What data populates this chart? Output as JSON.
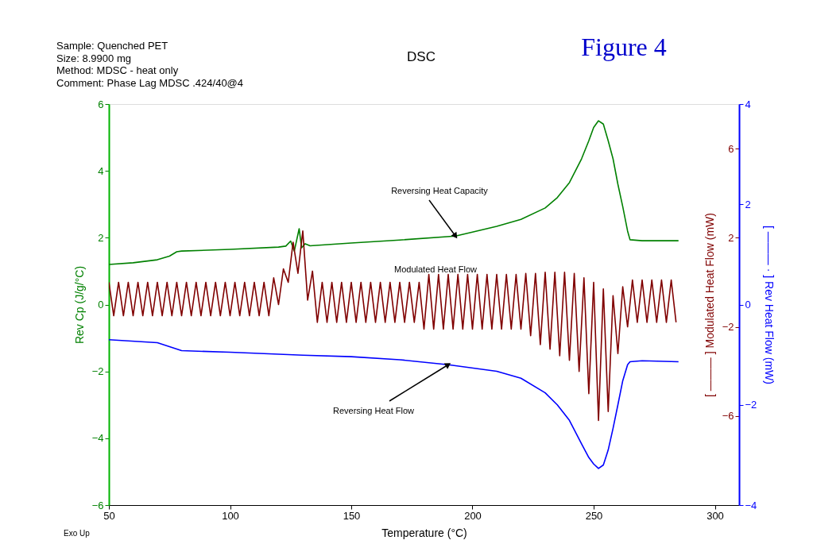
{
  "chart_data": {
    "type": "line",
    "title": "DSC",
    "subtitle": "Sample: Quenched PET\nSize:   8.9900 mg\nMethod: MDSC - heat only\nComment: Phase Lag MDSC .424/40@4",
    "xlabel": "Temperature (°C)",
    "ylabel": "Rev Cp (J/g/°C)",
    "y2label": "[ ——— ] Modulated Heat Flow (mW)",
    "y3label": "[ ——— · ] Rev Heat Flow (mW)",
    "annotations": [
      "Figure 4",
      "Exo Up"
    ],
    "xlim": [
      50,
      310
    ],
    "xticks": [
      50,
      100,
      150,
      200,
      250,
      300
    ],
    "ylim": [
      -6,
      6
    ],
    "yticks": [
      -6,
      -4,
      -2,
      0,
      2,
      4,
      6
    ],
    "y2lim": [
      -10,
      8
    ],
    "y2ticks": [
      -6,
      -2,
      2,
      6
    ],
    "y3lim": [
      -4,
      4
    ],
    "y3ticks": [
      -4,
      -2,
      0,
      2,
      4
    ],
    "grid": false,
    "series": [
      {
        "name": "Reversing Heat Capacity",
        "color": "#008000",
        "axis": "y",
        "x": [
          50,
          60,
          70,
          75,
          78,
          80,
          100,
          120,
          123,
          125,
          126.5,
          128.5,
          129.5,
          131,
          133,
          150,
          170,
          193,
          200,
          210,
          220,
          230,
          235,
          240,
          245,
          248,
          250,
          252,
          254,
          256,
          258,
          260,
          262,
          264,
          265,
          270,
          285
        ],
        "values": [
          1.2,
          1.25,
          1.34,
          1.45,
          1.58,
          1.6,
          1.65,
          1.72,
          1.75,
          1.9,
          1.6,
          2.27,
          1.7,
          1.82,
          1.76,
          1.84,
          1.93,
          2.05,
          2.17,
          2.34,
          2.55,
          2.89,
          3.2,
          3.65,
          4.36,
          4.9,
          5.3,
          5.5,
          5.4,
          4.9,
          4.36,
          3.6,
          2.93,
          2.2,
          1.94,
          1.91,
          1.91
        ]
      },
      {
        "name": "Modulated Heat Flow",
        "color": "#800000",
        "axis": "y2",
        "x": [
          50,
          52,
          54,
          56,
          58,
          60,
          62,
          64,
          66,
          68,
          70,
          72,
          74,
          76,
          78,
          80,
          82,
          84,
          86,
          88,
          90,
          92,
          94,
          96,
          98,
          100,
          102,
          104,
          106,
          108,
          110,
          112,
          114,
          116,
          118,
          120,
          122,
          124,
          126,
          128,
          130,
          132,
          134,
          136,
          138,
          140,
          142,
          144,
          146,
          148,
          150,
          152,
          154,
          156,
          158,
          160,
          162,
          164,
          166,
          168,
          170,
          172,
          174,
          176,
          178,
          180,
          182,
          184,
          186,
          188,
          190,
          192,
          194,
          196,
          198,
          200,
          202,
          204,
          206,
          208,
          210,
          212,
          214,
          216,
          218,
          220,
          222,
          224,
          226,
          228,
          230,
          232,
          234,
          236,
          238,
          240,
          242,
          244,
          246,
          248,
          250,
          252,
          254,
          256,
          258,
          260,
          262,
          264,
          266,
          268,
          270,
          272,
          274,
          276,
          278,
          280,
          282,
          284
        ],
        "values": [
          0,
          -1.5,
          0,
          -1.5,
          0,
          -1.5,
          0,
          -1.5,
          0,
          -1.5,
          0,
          -1.5,
          0,
          -1.5,
          0,
          -1.5,
          0,
          -1.5,
          0,
          -1.5,
          0,
          -1.5,
          0,
          -1.5,
          0,
          -1.5,
          0,
          -1.5,
          0,
          -1.5,
          0,
          -1.5,
          0,
          -1.5,
          0.2,
          -1.0,
          0.6,
          0.0,
          1.8,
          0.4,
          2.3,
          -0.8,
          0.5,
          -1.8,
          0,
          -1.8,
          0,
          -1.8,
          0,
          -1.8,
          0,
          -1.8,
          0,
          -1.8,
          0,
          -1.8,
          0,
          -1.8,
          0,
          -1.8,
          0,
          -1.8,
          0,
          -1.8,
          0,
          -2.1,
          0.35,
          -2.1,
          0.35,
          -2.1,
          0.35,
          -2.1,
          0.35,
          -2.1,
          0.35,
          -2.1,
          0.35,
          -2.1,
          0.35,
          -2.1,
          0.35,
          -2.1,
          0.35,
          -2.1,
          0.35,
          -2.1,
          0.4,
          -2.4,
          0.4,
          -2.8,
          0.45,
          -3.0,
          0.45,
          -3.3,
          0.45,
          -3.5,
          0.4,
          -4.0,
          0.2,
          -5.0,
          0.0,
          -6.2,
          -0.3,
          -5.8,
          -0.6,
          -3.2,
          -0.2,
          -2.0,
          0.1,
          -1.8,
          0.1,
          -1.8,
          0.1,
          -1.8,
          0.1,
          -1.8,
          0.1,
          -1.8
        ]
      },
      {
        "name": "Reversing Heat Flow",
        "color": "#0000ff",
        "axis": "y3",
        "x": [
          50,
          70,
          75,
          80,
          100,
          130,
          150,
          170,
          190,
          210,
          220,
          230,
          235,
          240,
          245,
          248,
          250,
          252,
          254,
          256,
          258,
          260,
          262,
          264,
          265,
          270,
          285
        ],
        "values": [
          -0.7,
          -0.76,
          -0.84,
          -0.92,
          -0.95,
          -1.01,
          -1.04,
          -1.1,
          -1.2,
          -1.33,
          -1.47,
          -1.76,
          -2.0,
          -2.31,
          -2.78,
          -3.05,
          -3.18,
          -3.27,
          -3.2,
          -2.9,
          -2.47,
          -2.0,
          -1.52,
          -1.2,
          -1.14,
          -1.12,
          -1.14
        ]
      }
    ]
  }
}
